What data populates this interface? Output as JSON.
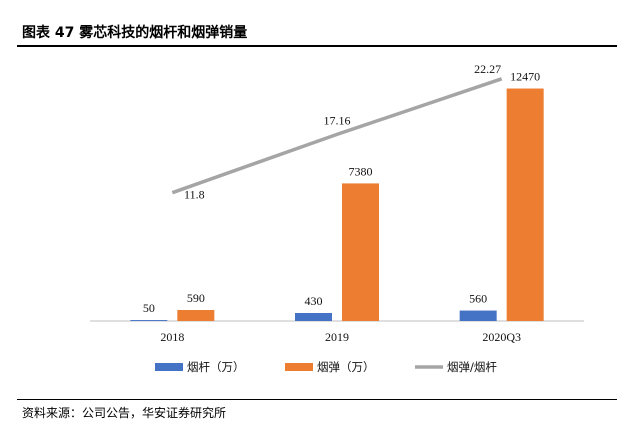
{
  "figure": {
    "title": "图表 47 雾芯科技的烟杆和烟弹销量",
    "source": "资料来源：公司公告，华安证券研究所"
  },
  "colors": {
    "rod": "#4472C4",
    "pod": "#ED7D31",
    "ratio": "#A5A5A5",
    "axis": "#BFBFBF"
  },
  "chart_data": {
    "type": "bar",
    "categories": [
      "2018",
      "2019",
      "2020Q3"
    ],
    "series": [
      {
        "name": "烟杆（万）",
        "kind": "bar",
        "color": "#4472C4",
        "values": [
          50,
          430,
          560
        ],
        "labels": [
          "50",
          "430",
          "560"
        ]
      },
      {
        "name": "烟弹（万）",
        "kind": "bar",
        "color": "#ED7D31",
        "values": [
          590,
          7380,
          12470
        ],
        "labels": [
          "590",
          "7380",
          "12470"
        ]
      },
      {
        "name": "烟弹/烟杆",
        "kind": "line",
        "axis": "secondary",
        "color": "#A5A5A5",
        "values": [
          11.8,
          17.16,
          22.27
        ],
        "labels": [
          "11.8",
          "17.16",
          "22.27"
        ]
      }
    ],
    "ylim": [
      0,
      14000
    ],
    "y2lim": [
      0,
      24
    ],
    "grid": false,
    "legend_position": "bottom"
  }
}
